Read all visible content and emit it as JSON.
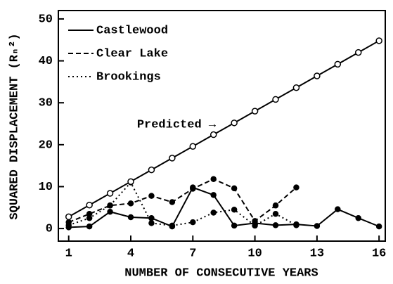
{
  "chart_data": {
    "type": "line",
    "x_label": "NUMBER OF CONSECUTIVE YEARS",
    "y_label": "SQUARED DISPLACEMENT (Rₙ²)",
    "annotation": "Predicted →",
    "x": [
      1,
      2,
      3,
      4,
      5,
      6,
      7,
      8,
      9,
      10,
      11,
      12,
      13,
      14,
      15,
      16
    ],
    "series": [
      {
        "name": "Castlewood",
        "color": "#000000",
        "dash": "solid",
        "marker": "filled",
        "values": [
          0.3,
          0.5,
          4,
          2.7,
          2.5,
          0.5,
          9.8,
          8,
          0.7,
          1.3,
          0.8,
          1,
          0.6,
          4.6,
          2.5,
          0.5
        ]
      },
      {
        "name": "Clear Lake",
        "color": "#000000",
        "dash": "dashed",
        "marker": "filled",
        "values": [
          1.5,
          3.5,
          5.5,
          6,
          7.8,
          6.3,
          9.5,
          11.8,
          9.6,
          1.8,
          5.5,
          9.8,
          null,
          null,
          null,
          null
        ]
      },
      {
        "name": "Brookings",
        "color": "#000000",
        "dash": "dotted",
        "marker": "filled",
        "values": [
          0.8,
          2.5,
          5.5,
          11,
          1.3,
          0.7,
          1.5,
          3.8,
          4.5,
          0.7,
          3.5,
          0.8,
          null,
          null,
          null,
          null
        ]
      },
      {
        "color": "#000000",
        "dash": "solid",
        "marker": "open",
        "values": [
          2.8,
          5.6,
          8.4,
          11.2,
          14,
          16.8,
          19.6,
          22.4,
          25.2,
          28,
          30.8,
          33.6,
          36.4,
          39.2,
          42,
          44.8
        ]
      }
    ],
    "xlim": [
      0.5,
      16.3
    ],
    "ylim": [
      -3,
      52
    ],
    "xticks": [
      1,
      4,
      7,
      10,
      13,
      16
    ],
    "yticks": [
      0,
      10,
      20,
      30,
      40,
      50
    ],
    "legend": "upper left"
  }
}
